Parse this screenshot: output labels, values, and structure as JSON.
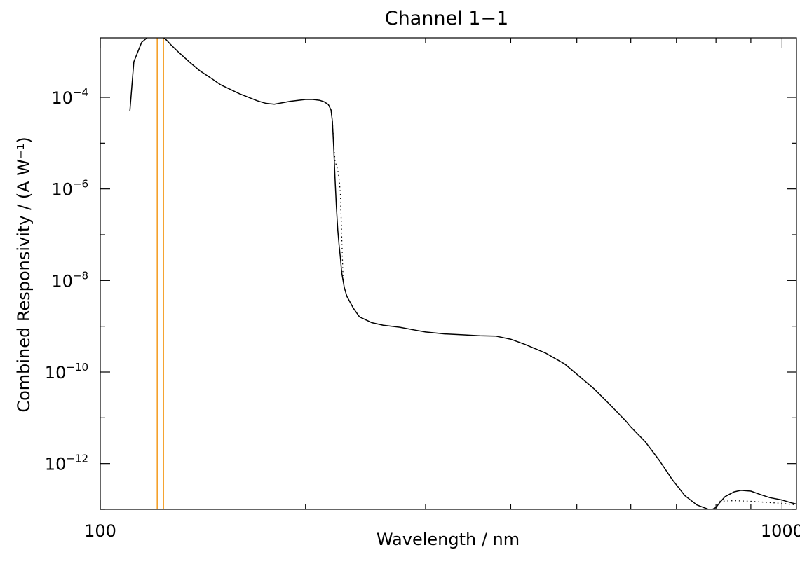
{
  "chart_data": {
    "type": "line",
    "title": "Channel 1−1",
    "xlabel": "Wavelength / nm",
    "ylabel": "Combined Responsivity / (A W⁻¹)",
    "x_scale": "log",
    "y_scale": "log",
    "xlim": [
      100,
      1050
    ],
    "ylim": [
      1e-13,
      0.002
    ],
    "x_major_ticks": [
      {
        "value": 100,
        "label": "100"
      },
      {
        "value": 1000,
        "label": "1000"
      }
    ],
    "x_minor_ticks": [
      200,
      300,
      400,
      500,
      600,
      700,
      800,
      900
    ],
    "y_major_ticks": [
      {
        "value": 0.0001,
        "base": "10",
        "exp": "−4"
      },
      {
        "value": 1e-06,
        "base": "10",
        "exp": "−6"
      },
      {
        "value": 1e-08,
        "base": "10",
        "exp": "−8"
      },
      {
        "value": 1e-10,
        "base": "10",
        "exp": "−10"
      },
      {
        "value": 1e-12,
        "base": "10",
        "exp": "−12"
      }
    ],
    "y_minor_ticks": [
      1e-05,
      1e-07,
      1e-09,
      1e-11,
      1e-13
    ],
    "grid": false,
    "vlines": {
      "color": "#f5a02a",
      "x": [
        121.2,
        123.8
      ]
    },
    "series": [
      {
        "style": "solid",
        "color": "#000000",
        "x": [
          110.5,
          112,
          115,
          118,
          120,
          121.5,
          123,
          125,
          127,
          130,
          135,
          140,
          145,
          150,
          160,
          170,
          175,
          180,
          190,
          200,
          205,
          210,
          213,
          216,
          218,
          219,
          220,
          221,
          222,
          223,
          224,
          225,
          226,
          228,
          230,
          235,
          240,
          250,
          260,
          275,
          290,
          300,
          320,
          340,
          360,
          380,
          400,
          420,
          450,
          480,
          500,
          530,
          560,
          590,
          600,
          630,
          660,
          690,
          720,
          750,
          780,
          790,
          800,
          810,
          825,
          850,
          870,
          900,
          930,
          960,
          1000,
          1030,
          1050
        ],
        "y": [
          5e-05,
          0.0006,
          0.0016,
          0.0022,
          0.0024,
          0.0024,
          0.0022,
          0.0018,
          0.0014,
          0.001,
          0.0006,
          0.00038,
          0.00027,
          0.00019,
          0.00012,
          8.4e-05,
          7.4e-05,
          7.1e-05,
          8.2e-05,
          9e-05,
          9e-05,
          8.6e-05,
          8e-05,
          7e-05,
          5.3e-05,
          3e-05,
          8e-06,
          1.6e-06,
          4e-07,
          1.3e-07,
          6e-08,
          3.2e-08,
          1.5e-08,
          7e-09,
          4.5e-09,
          2.5e-09,
          1.6e-09,
          1.2e-09,
          1.05e-09,
          9.5e-10,
          8.2e-10,
          7.5e-10,
          6.8e-10,
          6.5e-10,
          6.2e-10,
          6.1e-10,
          5.2e-10,
          4e-10,
          2.6e-10,
          1.5e-10,
          9e-11,
          4.3e-11,
          1.9e-11,
          8.5e-12,
          6.3e-12,
          3e-12,
          1.2e-12,
          4.5e-13,
          2e-13,
          1.25e-13,
          1e-13,
          1e-13,
          1.1e-13,
          1.4e-13,
          1.9e-13,
          2.4e-13,
          2.6e-13,
          2.5e-13,
          2.1e-13,
          1.8e-13,
          1.6e-13,
          1.4e-13,
          1.3e-13
        ]
      },
      {
        "style": "dotted",
        "color": "#000000",
        "x": [
          218,
          219,
          220,
          221,
          223,
          224,
          225,
          227,
          228
        ],
        "y": [
          5.3e-05,
          3e-05,
          1e-05,
          4e-06,
          2.6e-06,
          1.7e-06,
          8e-07,
          1.2e-08,
          7e-09
        ]
      },
      {
        "style": "dotted",
        "color": "#000000",
        "x": [
          810,
          850,
          900,
          950,
          1000,
          1050
        ],
        "y": [
          1.5e-13,
          1.55e-13,
          1.5e-13,
          1.42e-13,
          1.35e-13,
          1.25e-13
        ]
      }
    ]
  }
}
